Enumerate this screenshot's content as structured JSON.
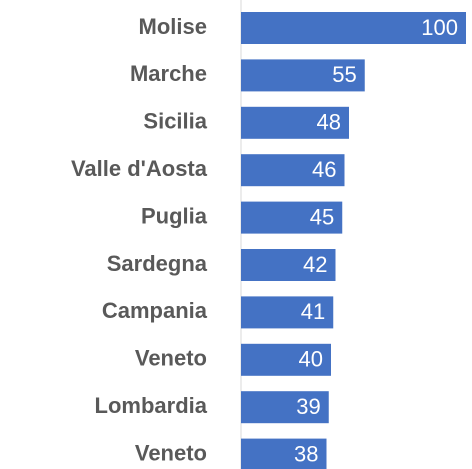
{
  "chart_data": {
    "type": "bar",
    "orientation": "horizontal",
    "categories": [
      "Molise",
      "Marche",
      "Sicilia",
      "Valle d'Aosta",
      "Puglia",
      "Sardegna",
      "Campania",
      "Veneto",
      "Lombardia",
      "Veneto"
    ],
    "values": [
      100,
      55,
      48,
      46,
      45,
      42,
      41,
      40,
      39,
      38
    ],
    "color": "#4472c4",
    "xlim": [
      0,
      100
    ]
  }
}
